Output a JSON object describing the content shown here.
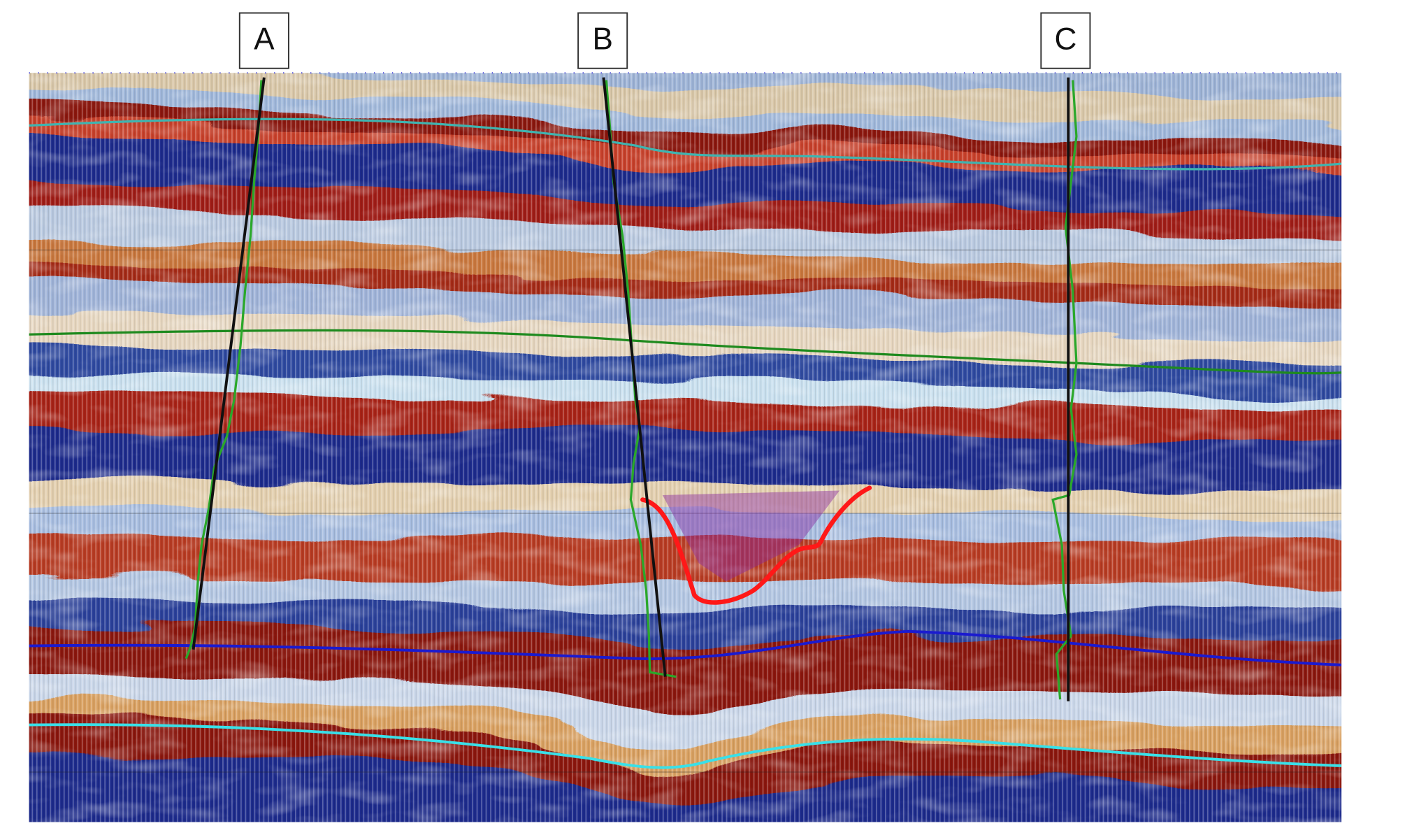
{
  "wells": [
    {
      "label": "A"
    },
    {
      "label": "B"
    },
    {
      "label": "C"
    }
  ]
}
